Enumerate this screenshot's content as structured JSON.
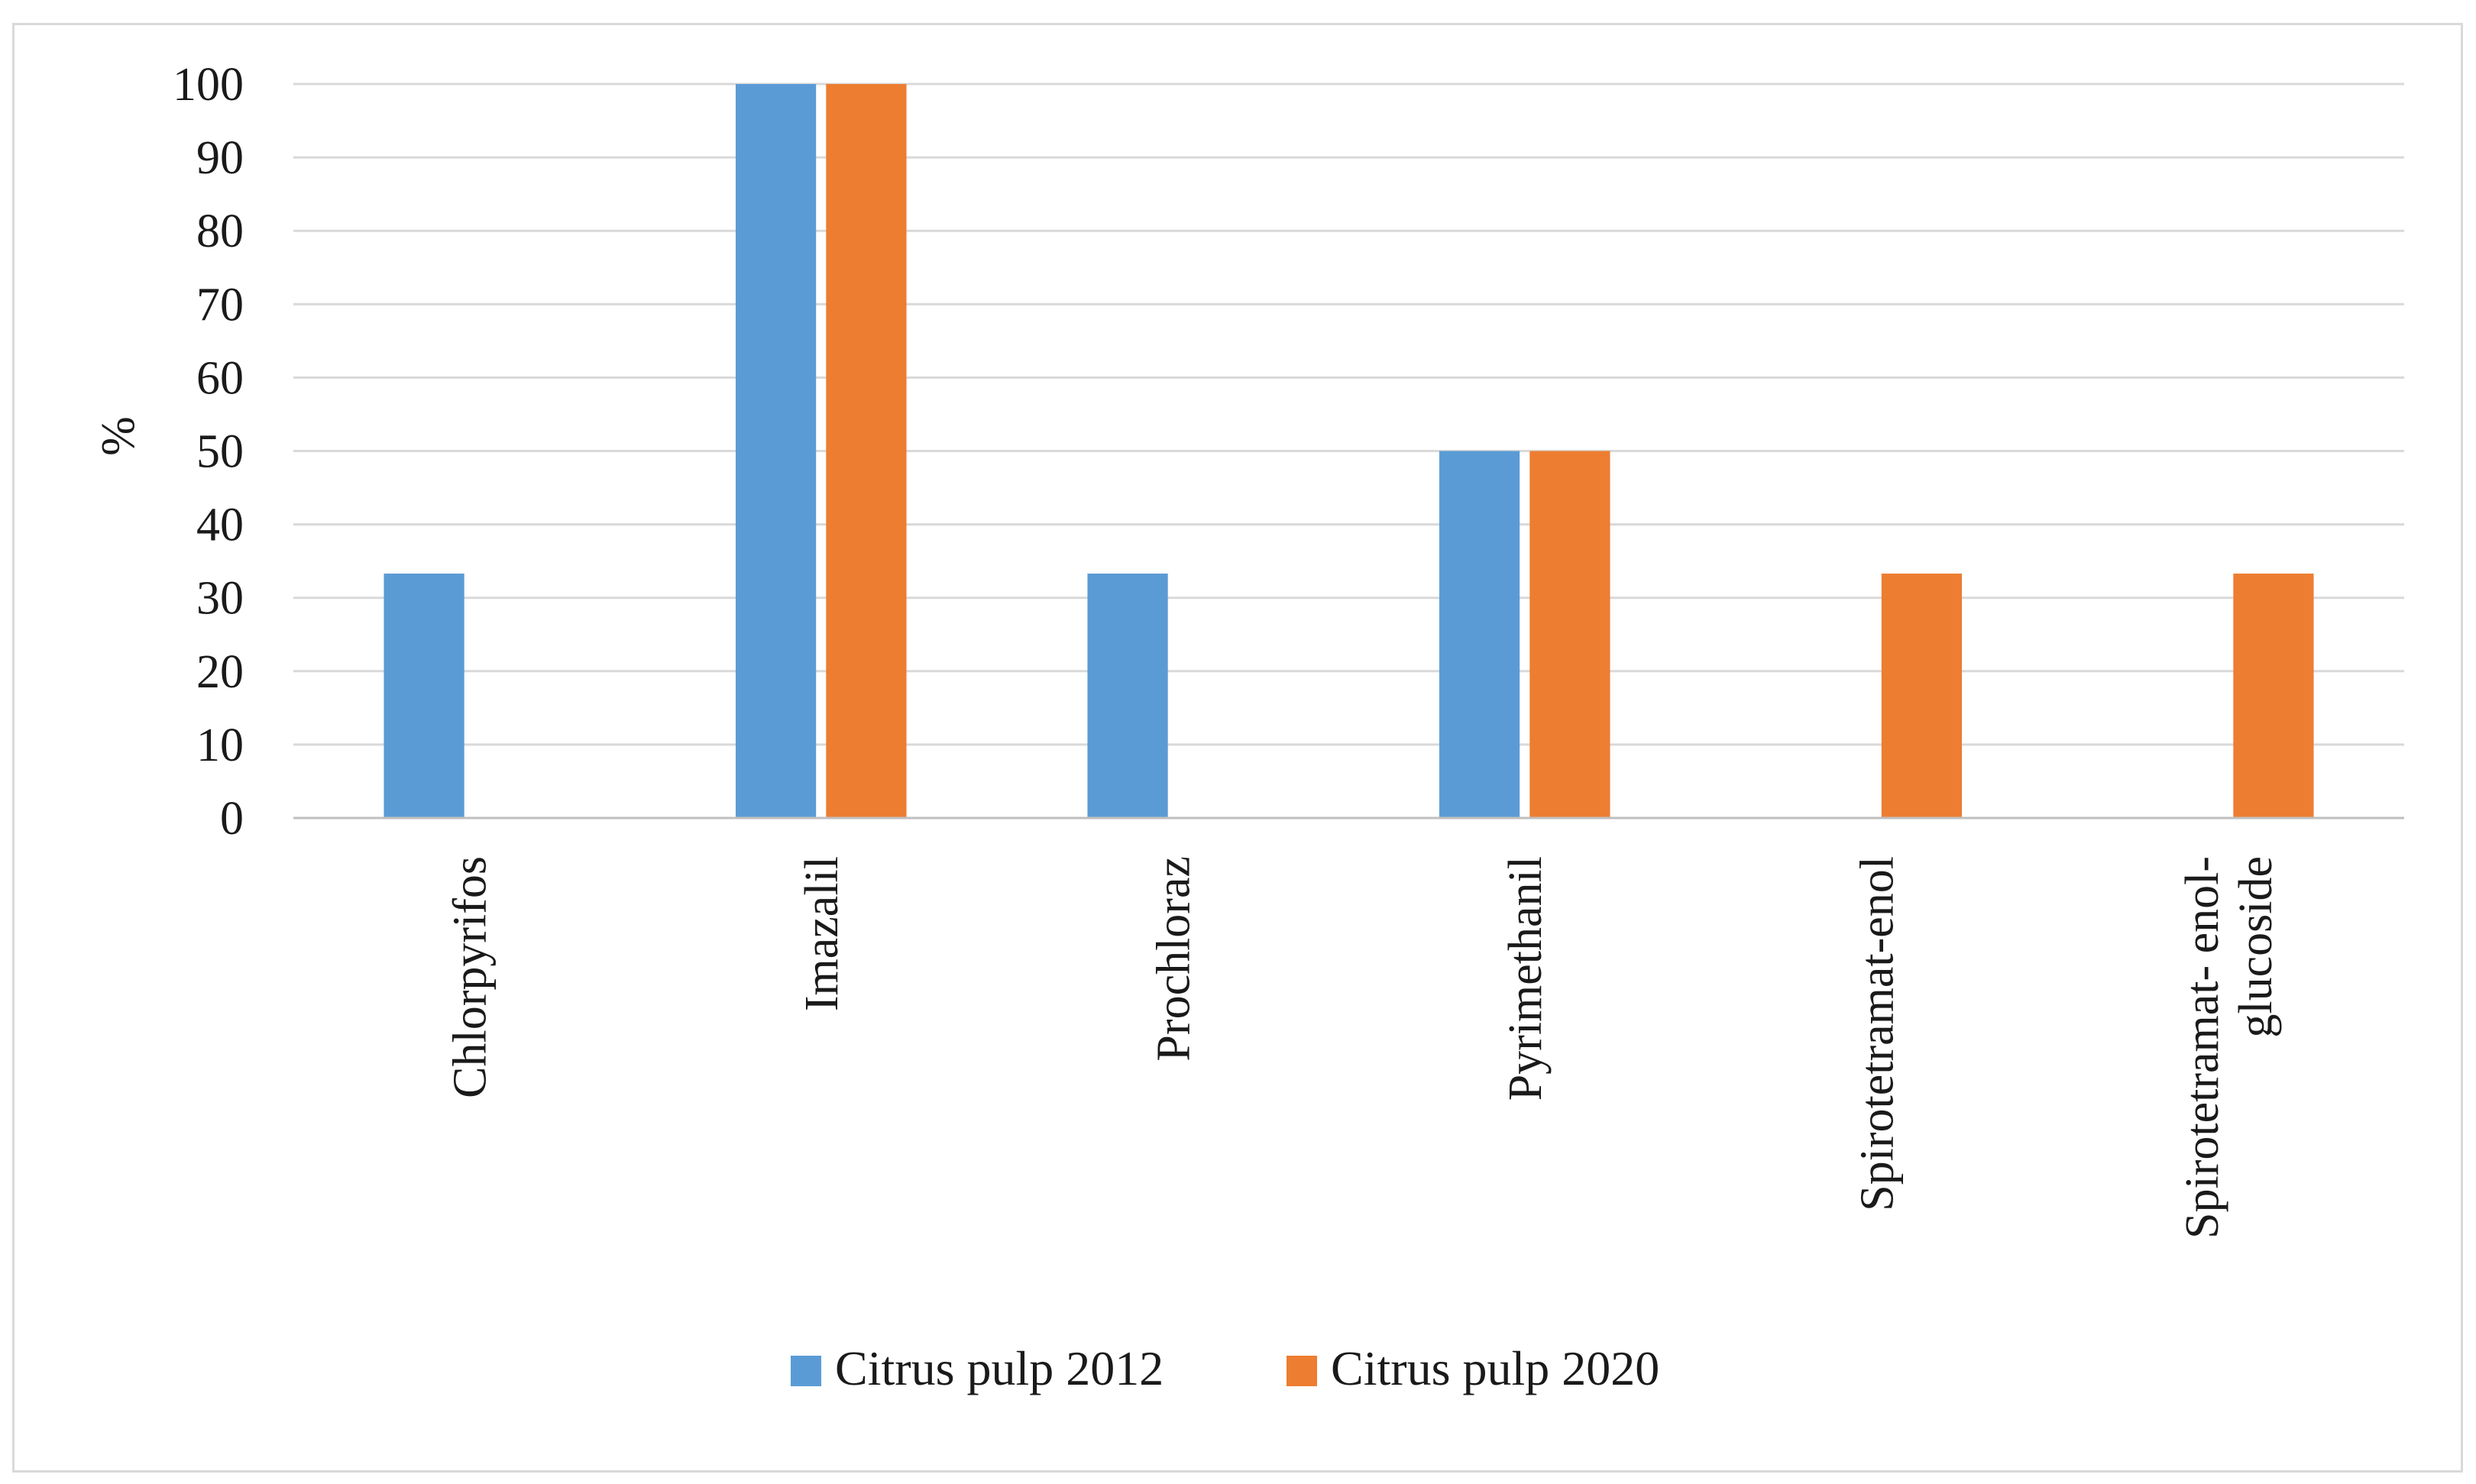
{
  "chart_data": {
    "type": "bar",
    "title": "",
    "xlabel": "",
    "ylabel": "%",
    "ylim": [
      0,
      100
    ],
    "yticks": [
      0,
      10,
      20,
      30,
      40,
      50,
      60,
      70,
      80,
      90,
      100
    ],
    "grid": true,
    "legend_position": "bottom",
    "categories": [
      "Chlorpyrifos",
      "Imazalil",
      "Prochloraz",
      "Pyrimethanil",
      "Spirotetramat-enol",
      "Spirotetramat- enol-glucoside"
    ],
    "category_label_lines": [
      [
        "Chlorpyrifos"
      ],
      [
        "Imazalil"
      ],
      [
        "Prochloraz"
      ],
      [
        "Pyrimethanil"
      ],
      [
        "Spirotetramat-enol"
      ],
      [
        "Spirotetramat- enol-",
        "glucoside"
      ]
    ],
    "series": [
      {
        "name": "Citrus pulp 2012",
        "color": "#5b9bd5",
        "values": [
          33.3,
          100,
          33.3,
          50,
          0,
          0
        ]
      },
      {
        "name": "Citrus pulp 2020",
        "color": "#ed7d31",
        "values": [
          0,
          100,
          0,
          50,
          33.3,
          33.3
        ]
      }
    ]
  }
}
